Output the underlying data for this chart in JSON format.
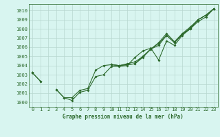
{
  "background_color": "#d8f5f0",
  "grid_color": "#b8d8d0",
  "line_color": "#2d6a2d",
  "title": "Graphe pression niveau de la mer (hPa)",
  "xlim": [
    -0.5,
    23.5
  ],
  "ylim": [
    999.5,
    1010.7
  ],
  "xticks": [
    0,
    1,
    2,
    3,
    4,
    5,
    6,
    7,
    8,
    9,
    10,
    11,
    12,
    13,
    14,
    15,
    16,
    17,
    18,
    19,
    20,
    21,
    22,
    23
  ],
  "yticks": [
    1000,
    1001,
    1002,
    1003,
    1004,
    1005,
    1006,
    1007,
    1008,
    1009,
    1010
  ],
  "series": [
    [
      1003.2,
      1002.3,
      null,
      1001.4,
      1000.5,
      1000.2,
      1001.1,
      1001.3,
      1002.8,
      1003.0,
      1003.9,
      1003.9,
      1004.0,
      1004.9,
      1005.6,
      1005.9,
      1004.6,
      1006.7,
      1006.2,
      1007.3,
      1008.0,
      1008.8,
      1009.3,
      1010.2
    ],
    [
      1003.2,
      null,
      null,
      1001.4,
      1000.5,
      1000.5,
      1001.3,
      1001.5,
      1003.5,
      1004.0,
      1004.1,
      1004.0,
      1004.1,
      1004.2,
      1004.9,
      1005.8,
      1006.2,
      1007.3,
      1006.5,
      1007.4,
      1008.0,
      1009.0,
      1009.5,
      1010.2
    ],
    [
      1003.2,
      null,
      null,
      null,
      null,
      null,
      null,
      null,
      null,
      null,
      1004.1,
      1004.0,
      1004.1,
      1004.2,
      1005.0,
      1005.8,
      1006.4,
      1007.3,
      1006.5,
      1007.4,
      1008.1,
      1009.0,
      1009.5,
      1010.2
    ],
    [
      1003.2,
      1002.3,
      null,
      null,
      null,
      null,
      null,
      null,
      null,
      null,
      1004.1,
      1004.0,
      1004.2,
      1004.4,
      1005.0,
      1005.8,
      1006.5,
      1007.5,
      1006.6,
      1007.5,
      1008.2,
      1009.0,
      1009.5,
      1010.2
    ]
  ],
  "figsize": [
    3.2,
    2.0
  ],
  "dpi": 100,
  "tick_fontsize": 5,
  "title_fontsize": 5.5,
  "linewidth": 0.8,
  "markersize": 2.0
}
